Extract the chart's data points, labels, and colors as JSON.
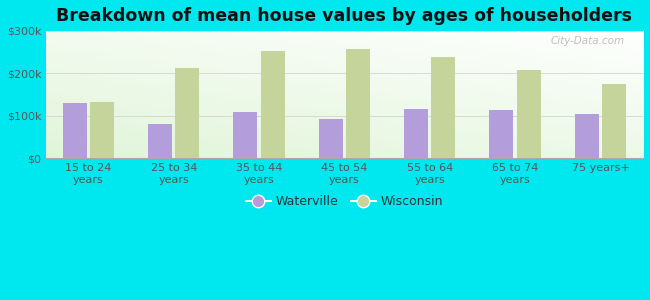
{
  "title": "Breakdown of mean house values by ages of householders",
  "categories": [
    "15 to 24\nyears",
    "25 to 34\nyears",
    "35 to 44\nyears",
    "45 to 54\nyears",
    "55 to 64\nyears",
    "65 to 74\nyears",
    "75 years+"
  ],
  "waterville": [
    130000,
    82000,
    110000,
    93000,
    116000,
    114000,
    105000
  ],
  "wisconsin": [
    133000,
    212000,
    252000,
    258000,
    238000,
    208000,
    175000
  ],
  "waterville_color": "#b39ddb",
  "wisconsin_color": "#c5d49a",
  "background_color": "#00e8ef",
  "plot_bg_color": "#e8f5e0",
  "ylim": [
    0,
    300000
  ],
  "yticks": [
    0,
    100000,
    200000,
    300000
  ],
  "ytick_labels": [
    "$0",
    "$100k",
    "$200k",
    "$300k"
  ],
  "bar_width": 0.28,
  "legend_labels": [
    "Waterville",
    "Wisconsin"
  ],
  "watermark": "City-Data.com",
  "title_fontsize": 12.5,
  "tick_fontsize": 8,
  "legend_fontsize": 9
}
